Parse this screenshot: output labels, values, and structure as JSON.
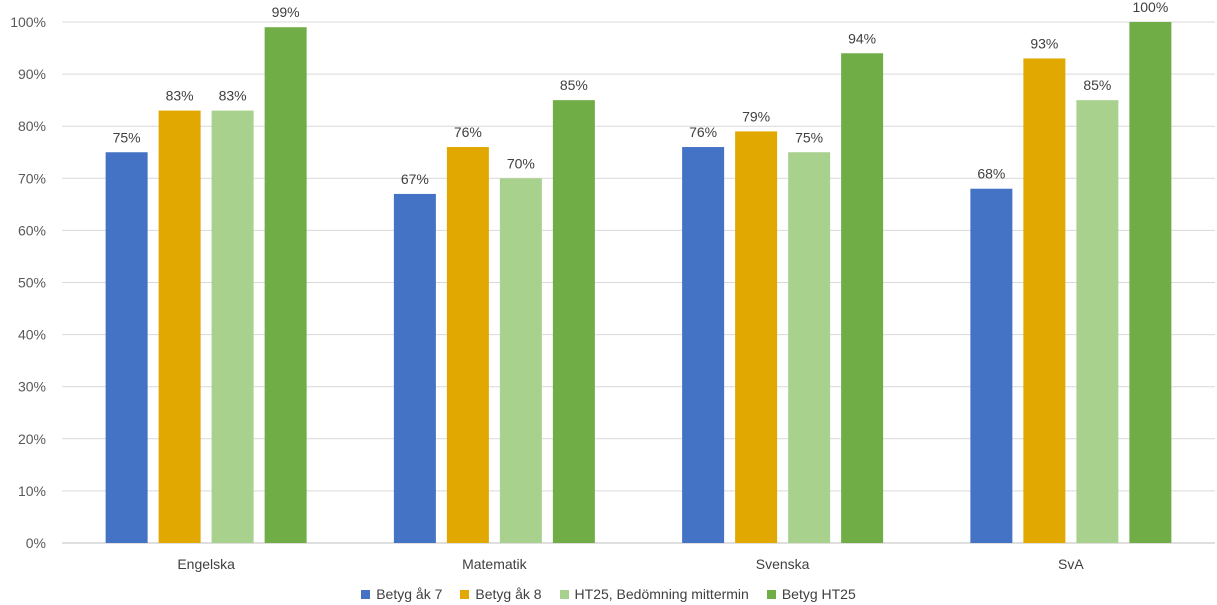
{
  "chart_data": {
    "type": "bar",
    "categories": [
      "Engelska",
      "Matematik",
      "Svenska",
      "SvA"
    ],
    "series": [
      {
        "name": "Betyg åk 7",
        "color": "#4472c4",
        "values": [
          75,
          67,
          76,
          68
        ],
        "labels": [
          "75%",
          "67%",
          "76%",
          "68%"
        ]
      },
      {
        "name": "Betyg åk 8",
        "color": "#e0a800",
        "values": [
          83,
          76,
          79,
          93
        ],
        "labels": [
          "83%",
          "76%",
          "79%",
          "93%"
        ]
      },
      {
        "name": "HT25, Bedömning mittermin",
        "color": "#a9d18e",
        "values": [
          83,
          70,
          75,
          85
        ],
        "labels": [
          "83%",
          "70%",
          "75%",
          "85%"
        ]
      },
      {
        "name": "Betyg HT25",
        "color": "#70ad47",
        "values": [
          99,
          85,
          94,
          100
        ],
        "labels": [
          "99%",
          "85%",
          "94%",
          "100%"
        ]
      }
    ],
    "ylim": [
      0,
      100
    ],
    "yticks": [
      "0%",
      "10%",
      "20%",
      "30%",
      "40%",
      "50%",
      "60%",
      "70%",
      "80%",
      "90%",
      "100%"
    ],
    "grid": true,
    "legend_position": "bottom"
  }
}
